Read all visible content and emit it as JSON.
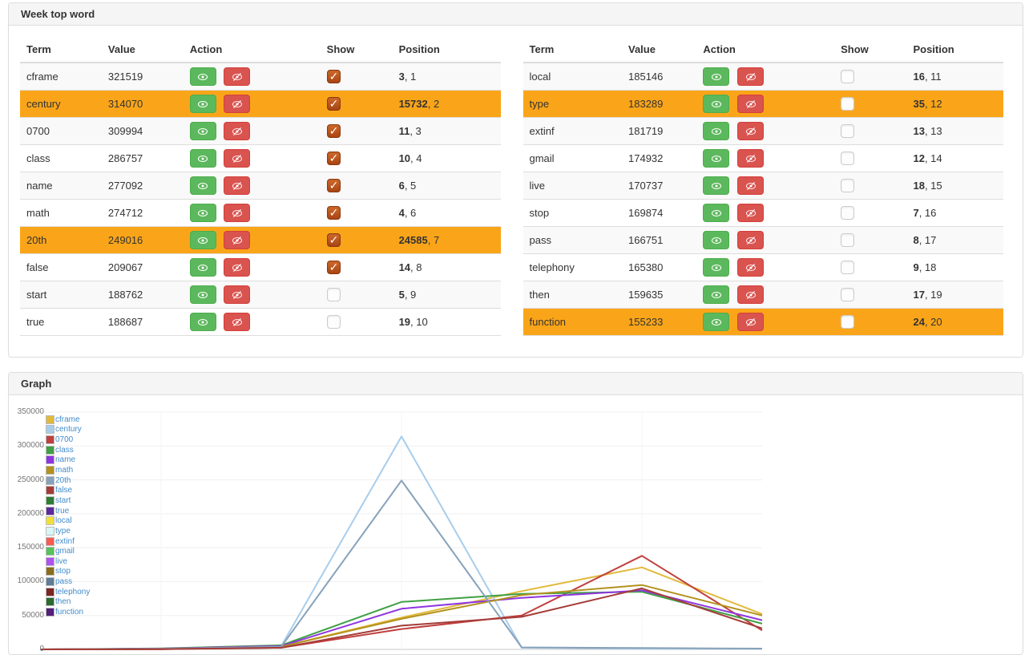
{
  "panels": {
    "table_panel": {
      "title": "Week top word"
    },
    "graph_panel": {
      "title": "Graph"
    }
  },
  "table": {
    "headers": [
      "Term",
      "Value",
      "Action",
      "Show",
      "Position"
    ],
    "left_rows": [
      {
        "term": "cframe",
        "value": "321519",
        "checked": true,
        "highlighted": false,
        "pos_main": "3",
        "pos_rank": "1"
      },
      {
        "term": "century",
        "value": "314070",
        "checked": true,
        "highlighted": true,
        "pos_main": "15732",
        "pos_rank": "2"
      },
      {
        "term": "0700",
        "value": "309994",
        "checked": true,
        "highlighted": false,
        "pos_main": "11",
        "pos_rank": "3"
      },
      {
        "term": "class",
        "value": "286757",
        "checked": true,
        "highlighted": false,
        "pos_main": "10",
        "pos_rank": "4"
      },
      {
        "term": "name",
        "value": "277092",
        "checked": true,
        "highlighted": false,
        "pos_main": "6",
        "pos_rank": "5"
      },
      {
        "term": "math",
        "value": "274712",
        "checked": true,
        "highlighted": false,
        "pos_main": "4",
        "pos_rank": "6"
      },
      {
        "term": "20th",
        "value": "249016",
        "checked": true,
        "highlighted": true,
        "pos_main": "24585",
        "pos_rank": "7"
      },
      {
        "term": "false",
        "value": "209067",
        "checked": true,
        "highlighted": false,
        "pos_main": "14",
        "pos_rank": "8"
      },
      {
        "term": "start",
        "value": "188762",
        "checked": false,
        "highlighted": false,
        "pos_main": "5",
        "pos_rank": "9"
      },
      {
        "term": "true",
        "value": "188687",
        "checked": false,
        "highlighted": false,
        "pos_main": "19",
        "pos_rank": "10"
      }
    ],
    "right_rows": [
      {
        "term": "local",
        "value": "185146",
        "checked": false,
        "highlighted": false,
        "pos_main": "16",
        "pos_rank": "11"
      },
      {
        "term": "type",
        "value": "183289",
        "checked": false,
        "highlighted": true,
        "pos_main": "35",
        "pos_rank": "12"
      },
      {
        "term": "extinf",
        "value": "181719",
        "checked": false,
        "highlighted": false,
        "pos_main": "13",
        "pos_rank": "13"
      },
      {
        "term": "gmail",
        "value": "174932",
        "checked": false,
        "highlighted": false,
        "pos_main": "12",
        "pos_rank": "14"
      },
      {
        "term": "live",
        "value": "170737",
        "checked": false,
        "highlighted": false,
        "pos_main": "18",
        "pos_rank": "15"
      },
      {
        "term": "stop",
        "value": "169874",
        "checked": false,
        "highlighted": false,
        "pos_main": "7",
        "pos_rank": "16"
      },
      {
        "term": "pass",
        "value": "166751",
        "checked": false,
        "highlighted": false,
        "pos_main": "8",
        "pos_rank": "17"
      },
      {
        "term": "telephony",
        "value": "165380",
        "checked": false,
        "highlighted": false,
        "pos_main": "9",
        "pos_rank": "18"
      },
      {
        "term": "then",
        "value": "159635",
        "checked": false,
        "highlighted": false,
        "pos_main": "17",
        "pos_rank": "19"
      },
      {
        "term": "function",
        "value": "155233",
        "checked": false,
        "highlighted": true,
        "pos_main": "24",
        "pos_rank": "20"
      }
    ]
  },
  "chart_data": {
    "type": "line",
    "title": "Graph",
    "x": [
      1,
      2,
      3,
      4,
      5,
      6,
      7
    ],
    "xlabel": "",
    "ylabel": "",
    "ylim": [
      0,
      350000
    ],
    "ytick_labels": [
      "350000",
      "300000",
      "250000",
      "200000",
      "150000",
      "100000",
      "50000",
      "0"
    ],
    "grid": true,
    "legend_position": "top-left",
    "series": [
      {
        "name": "cframe",
        "color": "#e2b93b",
        "shown": true,
        "values": [
          0,
          500,
          4000,
          47000,
          86000,
          121000,
          52000
        ]
      },
      {
        "name": "century",
        "color": "#a7cdec",
        "shown": true,
        "values": [
          0,
          1000,
          5000,
          314070,
          2500,
          1200,
          800
        ]
      },
      {
        "name": "0700",
        "color": "#c0403e",
        "shown": true,
        "values": [
          0,
          400,
          2500,
          30000,
          50000,
          138000,
          28000
        ]
      },
      {
        "name": "class",
        "color": "#3fa045",
        "shown": true,
        "values": [
          0,
          1500,
          6000,
          70000,
          82000,
          85000,
          38000
        ]
      },
      {
        "name": "name",
        "color": "#8f35e0",
        "shown": true,
        "values": [
          0,
          1200,
          5000,
          60000,
          76000,
          87000,
          43000
        ]
      },
      {
        "name": "math",
        "color": "#b3921e",
        "shown": true,
        "values": [
          0,
          800,
          4000,
          45000,
          80000,
          95000,
          50000
        ]
      },
      {
        "name": "20th",
        "color": "#87a1ba",
        "shown": true,
        "values": [
          0,
          800,
          4000,
          249016,
          3000,
          2000,
          1200
        ]
      },
      {
        "name": "false",
        "color": "#a53c38",
        "shown": true,
        "values": [
          0,
          400,
          2500,
          35000,
          48000,
          90000,
          31000
        ]
      },
      {
        "name": "start",
        "color": "#2e7d35",
        "shown": false,
        "values": null
      },
      {
        "name": "true",
        "color": "#5c2a9d",
        "shown": false,
        "values": null
      },
      {
        "name": "local",
        "color": "#f2df3a",
        "shown": false,
        "values": null
      },
      {
        "name": "type",
        "color": "#d9f6f6",
        "shown": false,
        "values": null
      },
      {
        "name": "extinf",
        "color": "#f75b51",
        "shown": false,
        "values": null
      },
      {
        "name": "gmail",
        "color": "#55c25c",
        "shown": false,
        "values": null
      },
      {
        "name": "live",
        "color": "#ae52f0",
        "shown": false,
        "values": null
      },
      {
        "name": "stop",
        "color": "#8a6d1b",
        "shown": false,
        "values": null
      },
      {
        "name": "pass",
        "color": "#5f7d96",
        "shown": false,
        "values": null
      },
      {
        "name": "telephony",
        "color": "#7c2622",
        "shown": false,
        "values": null
      },
      {
        "name": "then",
        "color": "#2c6b30",
        "shown": false,
        "values": null
      },
      {
        "name": "function",
        "color": "#531f7a",
        "shown": false,
        "values": null
      }
    ]
  },
  "ui_colors": {
    "highlight_orange": "#faa519",
    "show_button_green": "#5cb85c",
    "hide_button_red": "#d9534f",
    "checked_checkbox_rust": "#b5531f",
    "legend_link_blue": "#428bca",
    "panel_header_gray": "#f5f5f5"
  }
}
